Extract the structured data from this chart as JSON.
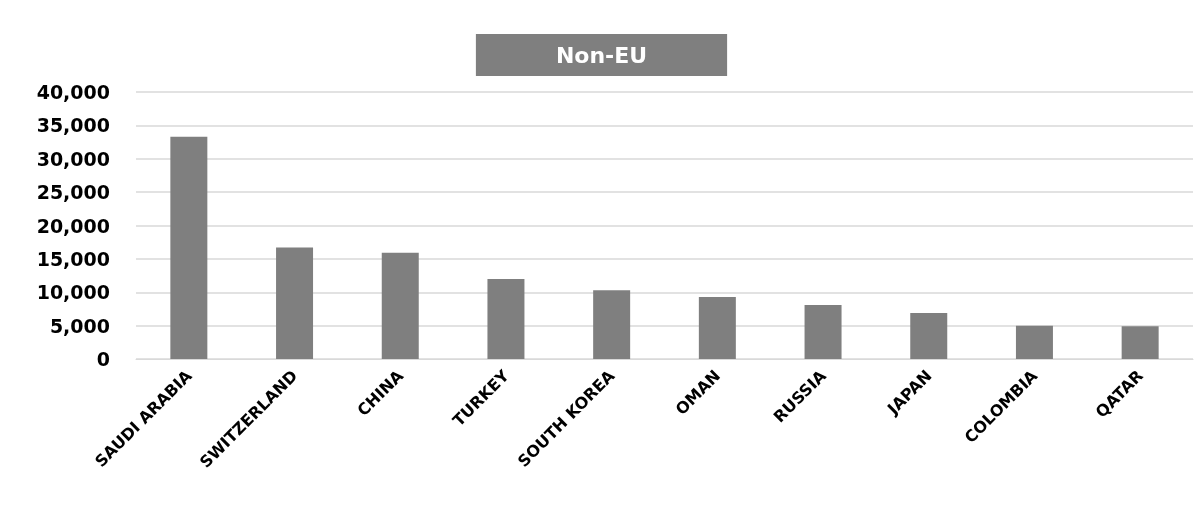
{
  "chart_data": {
    "type": "bar",
    "title": "Non-EU",
    "categories": [
      "SAUDI ARABIA",
      "SWITZERLAND",
      "CHINA",
      "TURKEY",
      "SOUTH KOREA",
      "OMAN",
      "RUSSIA",
      "JAPAN",
      "COLOMBIA",
      "QATAR"
    ],
    "values": [
      33300,
      16700,
      15900,
      12000,
      10300,
      9300,
      8100,
      6900,
      5000,
      4900
    ],
    "color": "#7f7f7f",
    "ylim": [
      0,
      40000
    ],
    "yticks": [
      0,
      {
        "value": 5000,
        "label": "5,000"
      },
      {
        "value": 10000,
        "label": "10,000"
      },
      {
        "value": 15000,
        "label": "15,000"
      },
      {
        "value": 20000,
        "label": "20,000"
      },
      {
        "value": 25000,
        "label": "25,000"
      },
      {
        "value": 30000,
        "label": "30,000"
      },
      {
        "value": 35000,
        "label": "35,000"
      },
      {
        "value": 40000,
        "label": "40,000"
      }
    ],
    "grid": "y"
  }
}
